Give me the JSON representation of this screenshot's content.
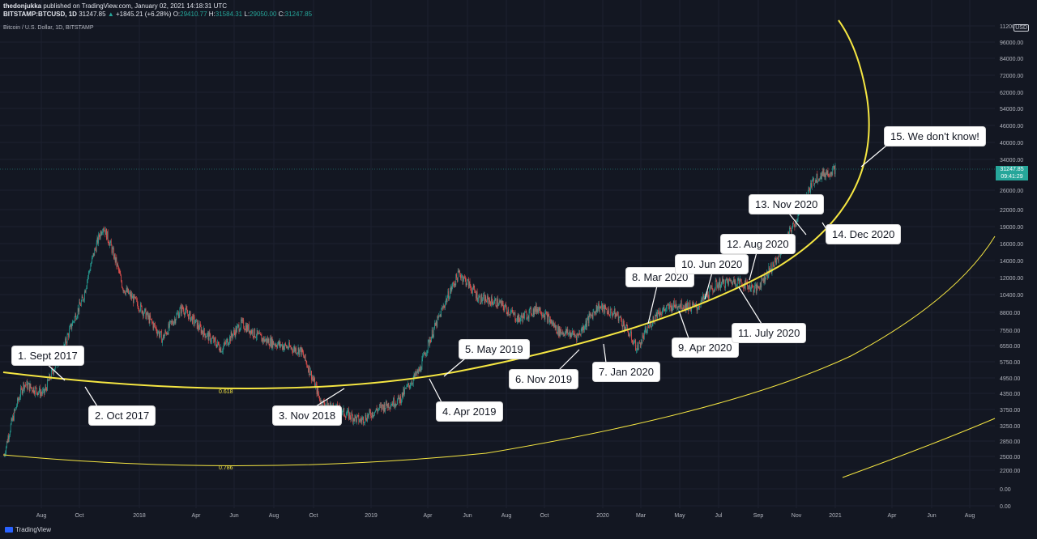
{
  "header": {
    "publisher": "thedonjukka",
    "published_text": "published on TradingView.com, January 02, 2021 14:18:31 UTC",
    "symbol": "BITSTAMP:BTCUSD, 1D",
    "last": "31247.85",
    "change": "+1845.21 (+6.28%)",
    "o_label": "O:",
    "o_value": "29410.77",
    "h_label": "H:",
    "h_value": "31584.31",
    "l_label": "L:",
    "l_value": "29050.00",
    "c_label": "C:",
    "c_value": "31247.85",
    "instrument": "Bitcoin / U.S. Dollar, 1D, BITSTAMP"
  },
  "price_axis": {
    "currency": "USD",
    "ticks": [
      "112000.00",
      "96000.00",
      "84000.00",
      "72000.00",
      "62000.00",
      "54000.00",
      "46000.00",
      "40000.00",
      "34000.00",
      "26000.00",
      "22000.00",
      "19000.00",
      "16000.00",
      "14000.00",
      "12000.00",
      "10400.00",
      "8800.00",
      "7550.00",
      "6550.00",
      "5750.00",
      "4950.00",
      "4350.00",
      "3750.00",
      "3250.00",
      "2850.00",
      "2500.00",
      "2200.00",
      "0.00",
      "0.00"
    ],
    "last_price": "31247.85",
    "countdown": "09:41:29"
  },
  "time_axis": {
    "ticks": [
      "Aug",
      "Oct",
      "2018",
      "Apr",
      "Jun",
      "Aug",
      "Oct",
      "2019",
      "Apr",
      "Jun",
      "Aug",
      "Oct",
      "2020",
      "Mar",
      "May",
      "Jul",
      "Sep",
      "Nov",
      "2021",
      "Apr",
      "Jun",
      "Aug"
    ]
  },
  "fib_levels": [
    "0.618",
    "0.786"
  ],
  "annotations": [
    "1. Sept 2017",
    "2. Oct 2017",
    "3. Nov 2018",
    "4. Apr 2019",
    "5. May 2019",
    "6. Nov 2019",
    "7. Jan 2020",
    "8. Mar 2020",
    "9. Apr 2020",
    "10. Jun 2020",
    "11. July 2020",
    "12. Aug 2020",
    "13. Nov 2020",
    "14. Dec 2020",
    "15. We don't know!"
  ],
  "colors": {
    "background": "#131722",
    "up": "#26a69a",
    "down": "#ef5350",
    "arc": "#f5e642",
    "text": "#d1d4dc"
  },
  "chart_data": {
    "type": "candlestick",
    "title": "Bitcoin / U.S. Dollar, 1D, BITSTAMP",
    "x_ticks": [
      "Aug",
      "Oct",
      "2018",
      "Apr",
      "Jun",
      "Aug",
      "Oct",
      "2019",
      "Apr",
      "Jun",
      "Aug",
      "Oct",
      "2020",
      "Mar",
      "May",
      "Jul",
      "Sep",
      "Nov",
      "2021",
      "Apr",
      "Jun",
      "Aug"
    ],
    "price_series": {
      "name": "BTCUSD",
      "dates": [
        "2017-07",
        "2017-08",
        "2017-09",
        "2017-10",
        "2017-11",
        "2017-12",
        "2018-01",
        "2018-02",
        "2018-03",
        "2018-04",
        "2018-05",
        "2018-06",
        "2018-07",
        "2018-08",
        "2018-09",
        "2018-10",
        "2018-11",
        "2018-12",
        "2019-01",
        "2019-02",
        "2019-03",
        "2019-04",
        "2019-05",
        "2019-06",
        "2019-07",
        "2019-08",
        "2019-09",
        "2019-10",
        "2019-11",
        "2019-12",
        "2020-01",
        "2020-02",
        "2020-03",
        "2020-04",
        "2020-05",
        "2020-06",
        "2020-07",
        "2020-08",
        "2020-09",
        "2020-10",
        "2020-11",
        "2020-12",
        "2021-01"
      ],
      "close": [
        2500,
        4700,
        4300,
        6400,
        10000,
        19000,
        11000,
        9000,
        7000,
        9200,
        7500,
        6400,
        8000,
        7000,
        6600,
        6300,
        4000,
        3700,
        3400,
        3800,
        4100,
        5300,
        8500,
        12500,
        10000,
        9600,
        8300,
        9200,
        7500,
        7200,
        9300,
        8600,
        6400,
        8800,
        9500,
        9200,
        11300,
        11700,
        10800,
        13800,
        19700,
        29000,
        31247.85
      ]
    },
    "last_close": 31247.85,
    "scale": "log",
    "legend_placement": "none"
  }
}
